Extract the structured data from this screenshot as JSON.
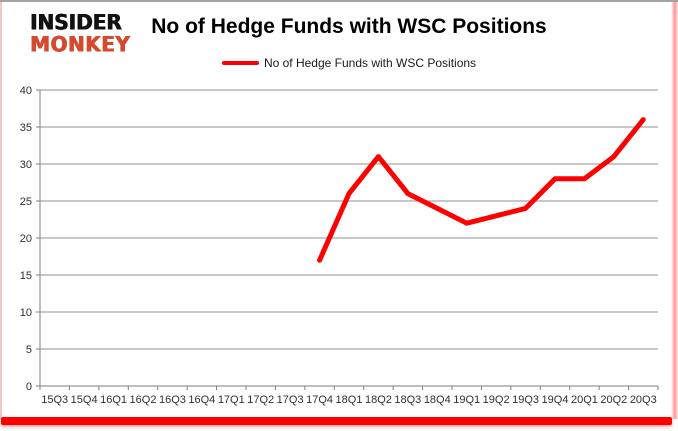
{
  "logo": {
    "line1": "INSIDER",
    "line2": "MONKEY"
  },
  "header": {
    "title": "No of Hedge Funds with WSC Positions",
    "legend_label": "No of Hedge Funds with WSC Positions"
  },
  "colors": {
    "series_line": "#fe0000",
    "logo_insider": "#111111",
    "logo_monkey": "#d5492f",
    "gridline": "#909090",
    "axis": "#7f7f7f",
    "tick_label": "#303030"
  },
  "chart_data": {
    "type": "line",
    "title": "No of Hedge Funds with WSC Positions",
    "legend_entries": [
      "No of Hedge Funds with WSC Positions"
    ],
    "legend_position": "top",
    "grid": true,
    "xlabel": "",
    "ylabel": "",
    "ylim": [
      0,
      40
    ],
    "y_ticks": [
      0,
      5,
      10,
      15,
      20,
      25,
      30,
      35,
      40
    ],
    "categories": [
      "15Q3",
      "15Q4",
      "16Q1",
      "16Q2",
      "16Q3",
      "16Q4",
      "17Q1",
      "17Q2",
      "17Q3",
      "17Q4",
      "18Q1",
      "18Q2",
      "18Q3",
      "18Q4",
      "19Q1",
      "19Q2",
      "19Q3",
      "19Q4",
      "20Q1",
      "20Q2",
      "20Q3"
    ],
    "series": [
      {
        "name": "No of Hedge Funds with WSC Positions",
        "color": "#fe0000",
        "values": [
          null,
          null,
          null,
          null,
          null,
          null,
          null,
          null,
          null,
          17,
          26,
          31,
          26,
          24,
          22,
          23,
          24,
          28,
          28,
          31,
          36
        ]
      }
    ]
  }
}
